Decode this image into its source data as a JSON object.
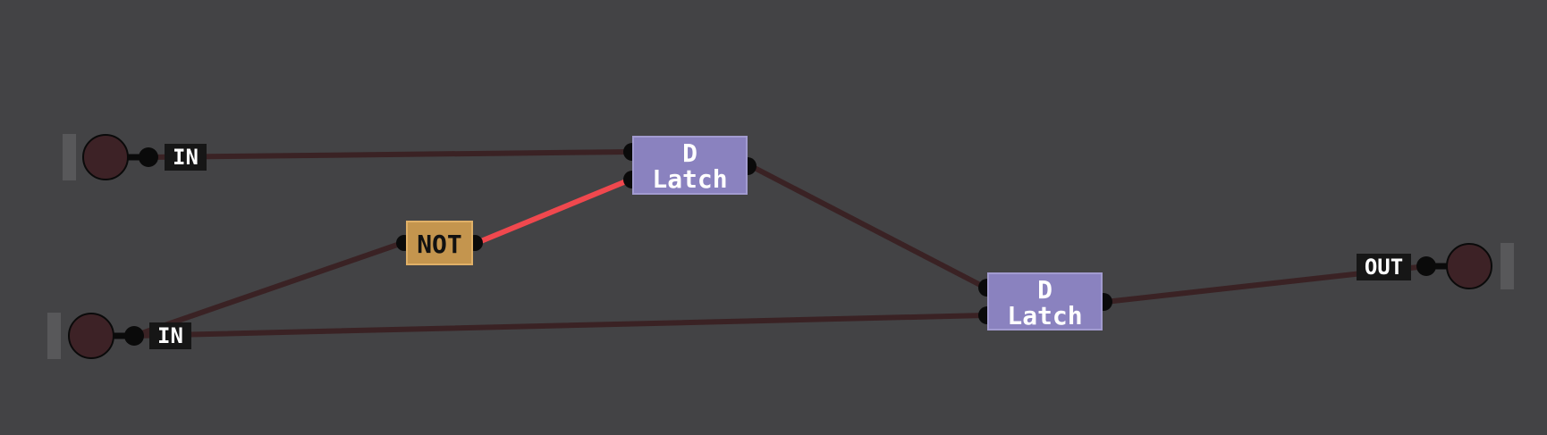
{
  "colors": {
    "background": "#434345",
    "wire_off": "#3a2224",
    "wire_on": "#f0484e",
    "pin": "#0a0a0a",
    "switch_fill": "#3d2226",
    "switch_tab": "#58585a",
    "latch_fill": "#8a82bf",
    "latch_border": "#a29bd0",
    "not_fill": "#c4954e",
    "not_border": "#e0b067",
    "tag_fill": "#161616",
    "tag_text": "#ffffff"
  },
  "inputs": [
    {
      "label": "IN",
      "state": "off"
    },
    {
      "label": "IN",
      "state": "off"
    }
  ],
  "output": {
    "label": "OUT",
    "state": "off"
  },
  "gates": {
    "not": {
      "label": "NOT"
    },
    "latch1": {
      "line1": "D",
      "line2": "Latch"
    },
    "latch2": {
      "line1": "D",
      "line2": "Latch"
    }
  },
  "wires": [
    {
      "from": "input-1",
      "to": "latch1-d",
      "state": "off"
    },
    {
      "from": "input-2",
      "to": "not-in",
      "state": "off"
    },
    {
      "from": "not-out",
      "to": "latch1-e",
      "state": "on"
    },
    {
      "from": "latch1-q",
      "to": "latch2-d",
      "state": "off"
    },
    {
      "from": "input-2",
      "to": "latch2-e",
      "state": "off"
    },
    {
      "from": "latch2-q",
      "to": "output",
      "state": "off"
    }
  ]
}
